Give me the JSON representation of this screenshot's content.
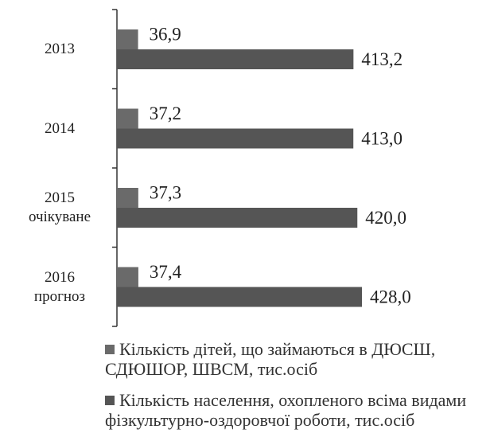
{
  "chart_data": {
    "type": "bar",
    "orientation": "horizontal",
    "categories": [
      "2013",
      "2014",
      "2015\nочікуване",
      "2016\nпрогноз"
    ],
    "series": [
      {
        "name": "Кількість дітей, що займаються в ДЮСШ, СДЮШОР,  ШВСМ, тис.осіб",
        "color": "#6a6a6a",
        "values": [
          36.9,
          37.2,
          37.3,
          37.4
        ],
        "value_labels": [
          "36,9",
          "37,2",
          "37,3",
          "37,4"
        ]
      },
      {
        "name": "Кількість населення, охопленого всіма видами фізкультурно-оздоровчої роботи, тис.осіб",
        "color": "#555555",
        "values": [
          413.2,
          413.0,
          420.0,
          428.0
        ],
        "value_labels": [
          "413,2",
          "413,0",
          "420,0",
          "428,0"
        ]
      }
    ],
    "xlim": [
      0,
      560
    ]
  }
}
